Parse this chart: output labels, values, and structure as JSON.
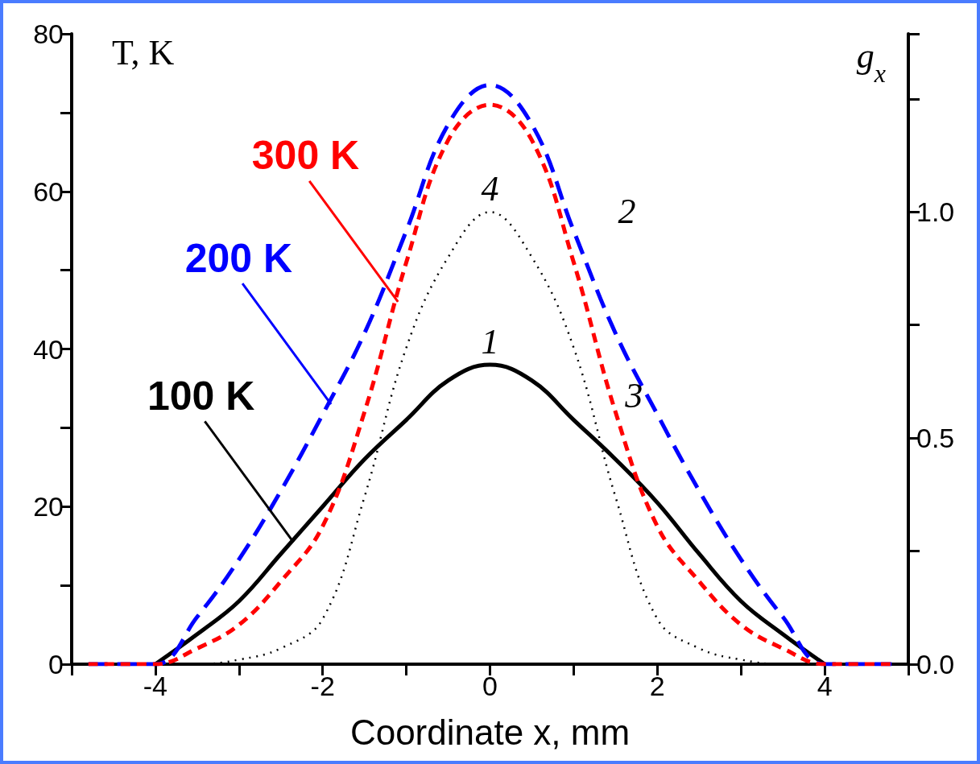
{
  "chart_data": {
    "type": "line",
    "xlabel": "Coordinate x, mm",
    "ylabel": "T, K",
    "y2label": "g$_{x}$",
    "x": [
      -4.8,
      -4,
      -3.5,
      -3,
      -2.5,
      -2,
      -1.5,
      -1,
      -0.5,
      0,
      0.5,
      1,
      1.5,
      2,
      2.5,
      3,
      3.5,
      4,
      4.8
    ],
    "series": [
      {
        "name": "1",
        "color": "#000000",
        "line_style": "solid",
        "values": [
          null,
          0,
          3.8,
          8,
          14,
          20,
          26,
          31,
          36,
          38,
          36,
          31,
          26,
          20.5,
          14,
          8,
          3.8,
          0,
          null
        ]
      },
      {
        "name": "2",
        "color": "#0000ff",
        "line_style": "dashed",
        "values": [
          0,
          0,
          6,
          13.3,
          22,
          31.7,
          42,
          55,
          68.5,
          73.5,
          68.5,
          55,
          42,
          31.7,
          22,
          13.3,
          6,
          0,
          0
        ]
      },
      {
        "name": "3",
        "color": "#ff0000",
        "line_style": "dashed",
        "values": [
          0,
          0,
          2,
          5,
          10.5,
          17.5,
          32,
          51,
          66.5,
          71,
          66.5,
          51,
          32,
          17.5,
          10.5,
          5,
          2,
          0,
          0
        ]
      },
      {
        "name": "4",
        "color": "#000000",
        "line_style": "dotted",
        "axis": "y2",
        "values": [
          null,
          0,
          0,
          0.01,
          0.035,
          0.1,
          0.37,
          0.7,
          0.9,
          1.0,
          0.9,
          0.7,
          0.37,
          0.1,
          0.035,
          0.01,
          0,
          0,
          null
        ]
      }
    ],
    "xlim": [
      -5,
      5
    ],
    "xticks": [
      -4,
      {
        "value": -3,
        "label": null
      },
      -2,
      {
        "value": -1,
        "label": null
      },
      0,
      {
        "value": 1,
        "label": null
      },
      2,
      {
        "value": 3,
        "label": null
      },
      4
    ],
    "ylim": [
      0,
      80
    ],
    "yticks": [
      0,
      {
        "value": 10,
        "label": null
      },
      20,
      {
        "value": 30,
        "label": null
      },
      40,
      {
        "value": 50,
        "label": null
      },
      60,
      {
        "value": 70,
        "label": null
      },
      80
    ],
    "y2lim": [
      0,
      1.394
    ],
    "y2ticks": [
      {
        "value": 0,
        "label": "0.0"
      },
      {
        "value": 0.25,
        "label": null
      },
      {
        "value": 0.5,
        "label": "0.5"
      },
      {
        "value": 0.75,
        "label": null
      },
      {
        "value": 1,
        "label": "1.0"
      },
      {
        "value": 1.25,
        "label": null
      }
    ],
    "marker": "none",
    "annotations": [
      {
        "text": "100 K",
        "x": -2.35,
        "y": 15.5
      },
      {
        "text": "200 K",
        "x": -1.9,
        "y": 33
      },
      {
        "text": "300 K",
        "x": -1.1,
        "y": 46
      }
    ]
  }
}
